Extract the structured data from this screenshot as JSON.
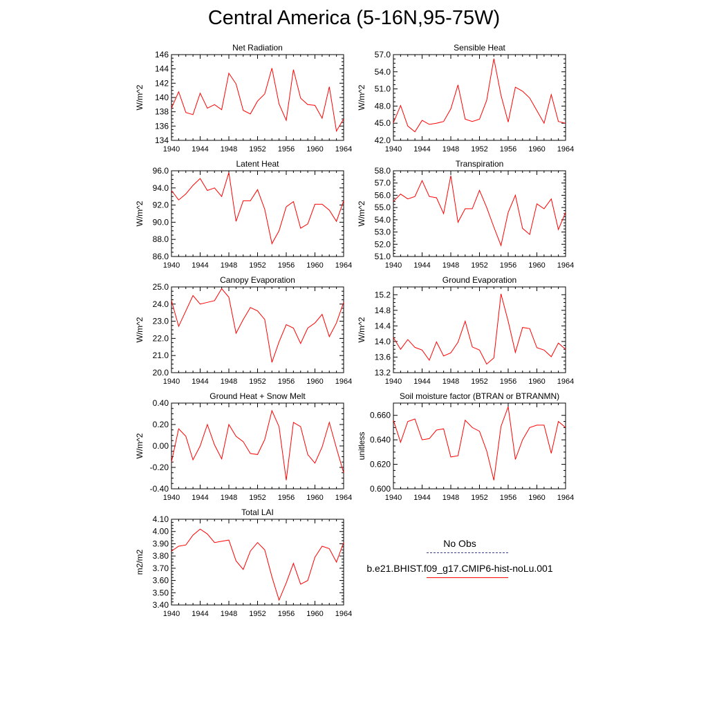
{
  "title": "Central America (5-16N,95-75W)",
  "legend": [
    {
      "label": "No Obs",
      "color": "#3a3a8c",
      "style": "dashed"
    },
    {
      "label": "b.e21.BHIST.f09_g17.CMIP6-hist-noLu.001",
      "color": "#ff0000",
      "style": "solid"
    }
  ],
  "series_color": "#ff0000",
  "chart_data": [
    {
      "type": "line",
      "title": "Net Radiation",
      "ylabel": "W/m^2",
      "ylim": [
        134,
        146
      ],
      "yticks": [
        "134",
        "136",
        "138",
        "140",
        "142",
        "144",
        "146"
      ],
      "x": [
        1940,
        1941,
        1942,
        1943,
        1944,
        1945,
        1946,
        1947,
        1948,
        1949,
        1950,
        1951,
        1952,
        1953,
        1954,
        1955,
        1956,
        1957,
        1958,
        1959,
        1960,
        1961,
        1962,
        1963,
        1964
      ],
      "values": [
        138.5,
        140.8,
        137.9,
        137.6,
        140.6,
        138.5,
        139.0,
        138.3,
        143.4,
        141.9,
        138.2,
        137.7,
        139.5,
        140.5,
        144.1,
        139.1,
        136.8,
        143.9,
        139.9,
        139.0,
        138.9,
        137.1,
        141.5,
        135.3,
        137.0
      ]
    },
    {
      "type": "line",
      "title": "Sensible Heat",
      "ylabel": "W/m^2",
      "ylim": [
        42,
        57
      ],
      "yticks": [
        "42.0",
        "45.0",
        "48.0",
        "51.0",
        "54.0",
        "57.0"
      ],
      "x": [
        1940,
        1941,
        1942,
        1943,
        1944,
        1945,
        1946,
        1947,
        1948,
        1949,
        1950,
        1951,
        1952,
        1953,
        1954,
        1955,
        1956,
        1957,
        1958,
        1959,
        1960,
        1961,
        1962,
        1963,
        1964
      ],
      "values": [
        45.1,
        48.1,
        44.5,
        43.5,
        45.5,
        44.8,
        45.0,
        45.3,
        47.5,
        51.7,
        45.7,
        45.3,
        45.7,
        49.0,
        56.3,
        49.9,
        45.2,
        51.3,
        50.6,
        49.4,
        47.2,
        45.0,
        50.0,
        45.3,
        45.0
      ]
    },
    {
      "type": "line",
      "title": "Latent Heat",
      "ylabel": "W/m^2",
      "ylim": [
        86,
        96
      ],
      "yticks": [
        "86.0",
        "88.0",
        "90.0",
        "92.0",
        "94.0",
        "96.0"
      ],
      "x": [
        1940,
        1941,
        1942,
        1943,
        1944,
        1945,
        1946,
        1947,
        1948,
        1949,
        1950,
        1951,
        1952,
        1953,
        1954,
        1955,
        1956,
        1957,
        1958,
        1959,
        1960,
        1961,
        1962,
        1963,
        1964
      ],
      "values": [
        93.7,
        92.6,
        93.3,
        94.3,
        95.1,
        93.7,
        94.0,
        93.0,
        95.8,
        90.1,
        92.5,
        92.5,
        93.8,
        91.5,
        87.5,
        89.0,
        91.8,
        92.4,
        89.3,
        89.8,
        92.1,
        92.1,
        91.4,
        90.1,
        92.5
      ]
    },
    {
      "type": "line",
      "title": "Transpiration",
      "ylabel": "W/m^2",
      "ylim": [
        51,
        58
      ],
      "yticks": [
        "51.0",
        "52.0",
        "53.0",
        "54.0",
        "55.0",
        "56.0",
        "57.0",
        "58.0"
      ],
      "x": [
        1940,
        1941,
        1942,
        1943,
        1944,
        1945,
        1946,
        1947,
        1948,
        1949,
        1950,
        1951,
        1952,
        1953,
        1954,
        1955,
        1956,
        1957,
        1958,
        1959,
        1960,
        1961,
        1962,
        1963,
        1964
      ],
      "values": [
        55.5,
        56.1,
        55.7,
        55.9,
        57.2,
        55.9,
        55.8,
        54.5,
        57.6,
        53.8,
        54.9,
        54.9,
        56.4,
        55.0,
        53.4,
        51.9,
        54.6,
        56.0,
        53.3,
        52.8,
        55.3,
        54.9,
        55.7,
        53.2,
        54.6
      ]
    },
    {
      "type": "line",
      "title": "Canopy Evaporation",
      "ylabel": "W/m^2",
      "ylim": [
        20,
        25
      ],
      "yticks": [
        "20.0",
        "21.0",
        "22.0",
        "23.0",
        "24.0",
        "25.0"
      ],
      "x": [
        1940,
        1941,
        1942,
        1943,
        1944,
        1945,
        1946,
        1947,
        1948,
        1949,
        1950,
        1951,
        1952,
        1953,
        1954,
        1955,
        1956,
        1957,
        1958,
        1959,
        1960,
        1961,
        1962,
        1963,
        1964
      ],
      "values": [
        24.2,
        22.7,
        23.6,
        24.5,
        24.0,
        24.1,
        24.2,
        24.9,
        24.4,
        22.3,
        23.1,
        23.8,
        23.6,
        23.1,
        20.6,
        21.8,
        22.8,
        22.6,
        21.7,
        22.6,
        22.9,
        23.4,
        22.1,
        22.9,
        24.1
      ]
    },
    {
      "type": "line",
      "title": "Ground Evaporation",
      "ylabel": "W/m^2",
      "ylim": [
        13.2,
        15.4
      ],
      "yticks": [
        "13.2",
        "13.6",
        "14.0",
        "14.4",
        "14.8",
        "15.2"
      ],
      "x": [
        1940,
        1941,
        1942,
        1943,
        1944,
        1945,
        1946,
        1947,
        1948,
        1949,
        1950,
        1951,
        1952,
        1953,
        1954,
        1955,
        1956,
        1957,
        1958,
        1959,
        1960,
        1961,
        1962,
        1963,
        1964
      ],
      "values": [
        14.1,
        13.8,
        14.05,
        13.85,
        13.78,
        13.52,
        13.99,
        13.63,
        13.71,
        13.98,
        14.52,
        13.86,
        13.78,
        13.42,
        13.58,
        15.22,
        14.52,
        13.72,
        14.36,
        14.33,
        13.84,
        13.78,
        13.61,
        13.96,
        13.8
      ]
    },
    {
      "type": "line",
      "title": "Ground Heat + Snow Melt",
      "ylabel": "W/m^2",
      "ylim": [
        -0.4,
        0.4
      ],
      "yticks": [
        "-0.40",
        "-0.20",
        "0.00",
        "0.20",
        "0.40"
      ],
      "x": [
        1940,
        1941,
        1942,
        1943,
        1944,
        1945,
        1946,
        1947,
        1948,
        1949,
        1950,
        1951,
        1952,
        1953,
        1954,
        1955,
        1956,
        1957,
        1958,
        1959,
        1960,
        1961,
        1962,
        1963,
        1964
      ],
      "values": [
        -0.15,
        0.16,
        0.09,
        -0.13,
        0.0,
        0.2,
        0.01,
        -0.12,
        0.2,
        0.09,
        0.04,
        -0.07,
        -0.08,
        0.06,
        0.33,
        0.18,
        -0.32,
        0.22,
        0.18,
        -0.08,
        -0.16,
        -0.01,
        0.22,
        -0.02,
        -0.25
      ]
    },
    {
      "type": "line",
      "title": "Soil moisture factor (BTRAN or BTRANMN)",
      "ylabel": "unitless",
      "ylim": [
        0.6,
        0.67
      ],
      "yticks": [
        "0.600",
        "0.620",
        "0.640",
        "0.660"
      ],
      "x": [
        1940,
        1941,
        1942,
        1943,
        1944,
        1945,
        1946,
        1947,
        1948,
        1949,
        1950,
        1951,
        1952,
        1953,
        1954,
        1955,
        1956,
        1957,
        1958,
        1959,
        1960,
        1961,
        1962,
        1963,
        1964
      ],
      "values": [
        0.656,
        0.638,
        0.655,
        0.657,
        0.64,
        0.641,
        0.648,
        0.649,
        0.626,
        0.627,
        0.656,
        0.65,
        0.647,
        0.631,
        0.607,
        0.651,
        0.667,
        0.624,
        0.64,
        0.65,
        0.652,
        0.652,
        0.629,
        0.655,
        0.65
      ]
    },
    {
      "type": "line",
      "title": "Total LAI",
      "ylabel": "m2/m2",
      "ylim": [
        3.4,
        4.1
      ],
      "yticks": [
        "3.40",
        "3.50",
        "3.60",
        "3.70",
        "3.80",
        "3.90",
        "4.00",
        "4.10"
      ],
      "x": [
        1940,
        1941,
        1942,
        1943,
        1944,
        1945,
        1946,
        1947,
        1948,
        1949,
        1950,
        1951,
        1952,
        1953,
        1954,
        1955,
        1956,
        1957,
        1958,
        1959,
        1960,
        1961,
        1962,
        1963,
        1964
      ],
      "values": [
        3.84,
        3.88,
        3.89,
        3.97,
        4.02,
        3.98,
        3.91,
        3.92,
        3.93,
        3.76,
        3.69,
        3.84,
        3.91,
        3.85,
        3.63,
        3.44,
        3.58,
        3.74,
        3.57,
        3.6,
        3.79,
        3.88,
        3.86,
        3.75,
        3.91
      ]
    }
  ],
  "xticks": [
    "1940",
    "1944",
    "1948",
    "1952",
    "1956",
    "1960",
    "1964"
  ],
  "xrange": [
    1940,
    1964
  ]
}
